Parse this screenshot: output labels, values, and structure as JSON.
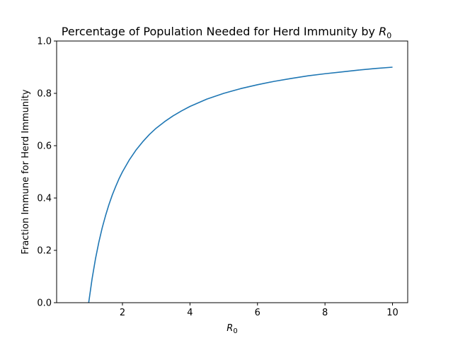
{
  "chart_data": {
    "type": "line",
    "title": "Percentage of Population Needed for Herd Immunity by",
    "title_symbol": "R",
    "title_symbol_sub": "0",
    "xlabel_symbol": "R",
    "xlabel_symbol_sub": "0",
    "ylabel": "Fraction Immune for Herd Immunity",
    "xlim": [
      0.05,
      10.45
    ],
    "ylim": [
      0.0,
      1.0
    ],
    "x_ticks": [
      {
        "value": 2,
        "label": "2"
      },
      {
        "value": 4,
        "label": "4"
      },
      {
        "value": 6,
        "label": "6"
      },
      {
        "value": 8,
        "label": "8"
      },
      {
        "value": 10,
        "label": "10"
      }
    ],
    "y_ticks": [
      {
        "value": 0.0,
        "label": "0.0"
      },
      {
        "value": 0.2,
        "label": "0.2"
      },
      {
        "value": 0.4,
        "label": "0.4"
      },
      {
        "value": 0.6,
        "label": "0.6"
      },
      {
        "value": 0.8,
        "label": "0.8"
      },
      {
        "value": 1.0,
        "label": "1.0"
      }
    ],
    "grid": false,
    "series": [
      {
        "color": "#1f77b4",
        "x": [
          0.95,
          1.0,
          1.1,
          1.2,
          1.3,
          1.4,
          1.5,
          1.6,
          1.7,
          1.8,
          1.9,
          2.0,
          2.2,
          2.4,
          2.6,
          2.8,
          3.0,
          3.25,
          3.5,
          3.75,
          4.0,
          4.5,
          5.0,
          5.5,
          6.0,
          6.5,
          7.0,
          7.5,
          8.0,
          8.5,
          9.0,
          9.5,
          10.0
        ],
        "y": [
          -0.053,
          0.0,
          0.091,
          0.167,
          0.231,
          0.286,
          0.333,
          0.375,
          0.412,
          0.444,
          0.474,
          0.5,
          0.545,
          0.583,
          0.615,
          0.643,
          0.667,
          0.692,
          0.714,
          0.733,
          0.75,
          0.778,
          0.8,
          0.818,
          0.833,
          0.846,
          0.857,
          0.867,
          0.875,
          0.882,
          0.889,
          0.895,
          0.9
        ]
      }
    ]
  }
}
